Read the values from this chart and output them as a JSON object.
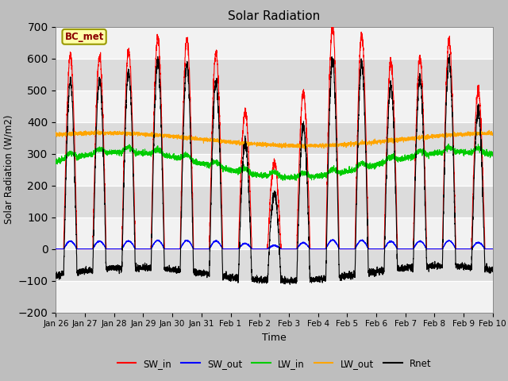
{
  "title": "Solar Radiation",
  "xlabel": "Time",
  "ylabel": "Solar Radiation (W/m2)",
  "ylim": [
    -200,
    700
  ],
  "yticks": [
    -200,
    -100,
    0,
    100,
    200,
    300,
    400,
    500,
    600,
    700
  ],
  "annotation_text": "BC_met",
  "fig_bg_color": "#c8c8c8",
  "plot_bg_color": "#e8e8e8",
  "band_color_light": "#f0f0f0",
  "band_color_dark": "#d8d8d8",
  "legend_entries": [
    "SW_in",
    "SW_out",
    "LW_in",
    "LW_out",
    "Rnet"
  ],
  "line_colors": [
    "#ff0000",
    "#0000ff",
    "#00cc00",
    "#ffa500",
    "#000000"
  ],
  "n_days": 15,
  "samples_per_day": 288,
  "seed": 42,
  "day_peaks": [
    610,
    605,
    625,
    665,
    660,
    620,
    430,
    270,
    490,
    700,
    670,
    590,
    600,
    660,
    500
  ],
  "tick_labels": [
    "Jan 26",
    "Jan 27",
    "Jan 28",
    "Jan 29",
    "Jan 30",
    "Jan 31",
    "Feb 1",
    "Feb 2",
    "Feb 3",
    "Feb 4",
    "Feb 5",
    "Feb 6",
    "Feb 7",
    "Feb 8",
    "Feb 9",
    "Feb 10"
  ]
}
